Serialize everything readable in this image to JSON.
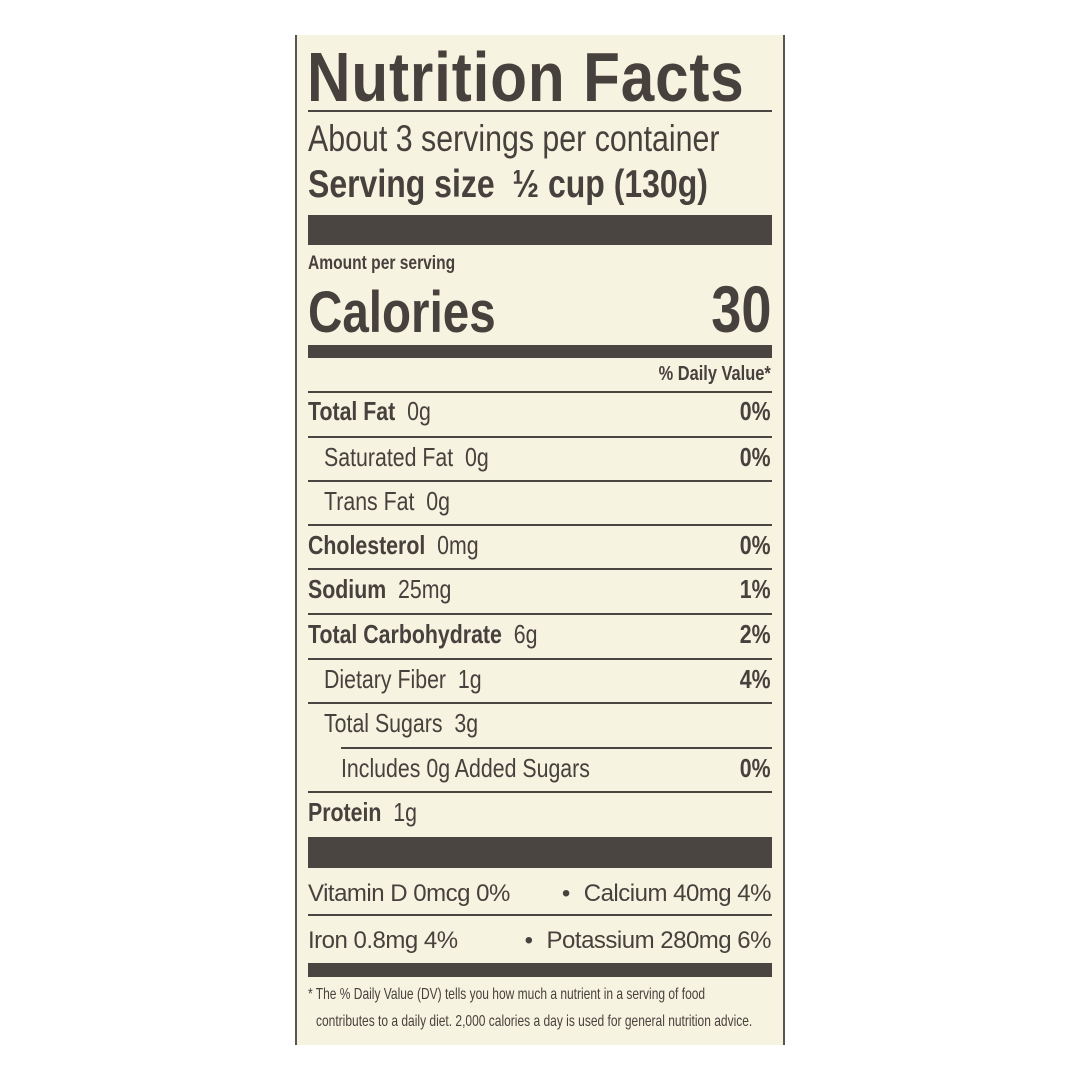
{
  "title": "Nutrition Facts",
  "servings_per_container": "About 3 servings per container",
  "serving_size_label": "Serving size",
  "serving_size_value": "½ cup (130g)",
  "amount_per_serving": "Amount per serving",
  "calories_label": "Calories",
  "calories_value": "30",
  "daily_value_header": "% Daily Value*",
  "nutrients": [
    {
      "name": "Total Fat",
      "amount": "0g",
      "dv": "0%"
    },
    {
      "name": "Saturated Fat",
      "amount": "0g",
      "dv": "0%"
    },
    {
      "name": "Trans Fat",
      "amount": "0g",
      "dv": ""
    },
    {
      "name": "Cholesterol",
      "amount": "0mg",
      "dv": "0%"
    },
    {
      "name": "Sodium",
      "amount": "25mg",
      "dv": "1%"
    },
    {
      "name": "Total Carbohydrate",
      "amount": "6g",
      "dv": "2%"
    },
    {
      "name": "Dietary Fiber",
      "amount": "1g",
      "dv": "4%"
    },
    {
      "name": "Total Sugars",
      "amount": "3g",
      "dv": ""
    },
    {
      "name": "Includes 0g Added Sugars",
      "amount": "",
      "dv": "0%"
    },
    {
      "name": "Protein",
      "amount": "1g",
      "dv": ""
    }
  ],
  "micronutrients": [
    {
      "left": "Vitamin D  0mcg  0%",
      "right": "Calcium  40mg  4%"
    },
    {
      "left": "Iron  0.8mg  4%",
      "right": "Potassium  280mg  6%"
    }
  ],
  "bullet": "•",
  "footnote_line1": "* The % Daily Value (DV) tells you how much a nutrient in a serving of food",
  "footnote_line2": "contributes to a daily diet. 2,000 calories a day is used for general nutrition advice.",
  "colors": {
    "ink": "#47413d",
    "background": "#f7f3e1"
  }
}
